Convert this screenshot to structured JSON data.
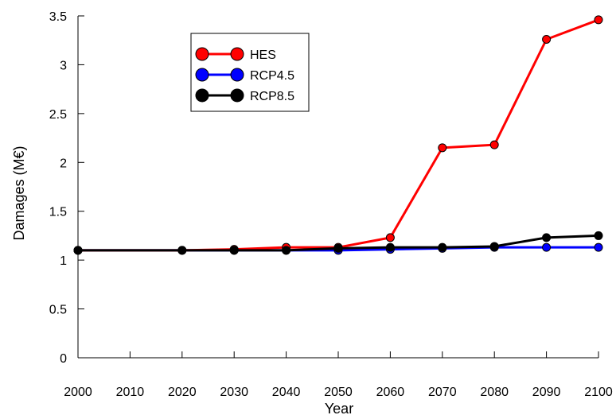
{
  "chart_data": {
    "type": "line",
    "title": "",
    "xlabel": "Year",
    "ylabel": "Damages (M€)",
    "x": [
      2000,
      2020,
      2030,
      2040,
      2050,
      2060,
      2070,
      2080,
      2090,
      2100
    ],
    "xticks": [
      "2000",
      "2010",
      "2020",
      "2030",
      "2040",
      "2050",
      "2060",
      "2070",
      "2080",
      "2090",
      "2100"
    ],
    "xlim": [
      2000,
      2100
    ],
    "yticks": [
      "0",
      "0.5",
      "1",
      "1.5",
      "2",
      "2.5",
      "3",
      "3.5"
    ],
    "ylim": [
      0,
      3.5
    ],
    "grid": false,
    "legend_position": "top-left",
    "series": [
      {
        "name": "HES",
        "color": "#ff0000",
        "values": [
          1.1,
          1.1,
          1.11,
          1.13,
          1.13,
          1.23,
          2.15,
          2.18,
          3.26,
          3.46
        ]
      },
      {
        "name": "RCP4.5",
        "color": "#0000ff",
        "values": [
          1.1,
          1.1,
          1.1,
          1.1,
          1.1,
          1.11,
          1.12,
          1.13,
          1.13,
          1.13
        ]
      },
      {
        "name": "RCP8.5",
        "color": "#000000",
        "values": [
          1.1,
          1.1,
          1.1,
          1.1,
          1.12,
          1.13,
          1.13,
          1.14,
          1.23,
          1.25
        ]
      }
    ]
  }
}
